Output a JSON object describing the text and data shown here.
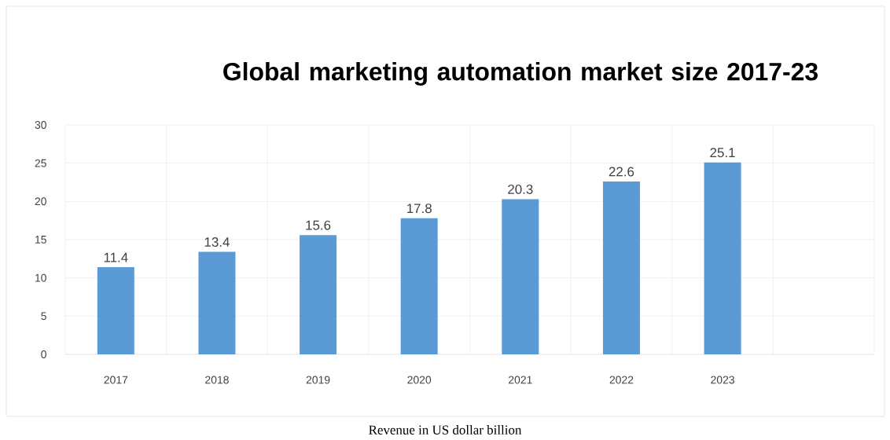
{
  "chart_data": {
    "type": "bar",
    "title": "Global marketing automation market size 2017-23",
    "categories": [
      "2017",
      "2018",
      "2019",
      "2020",
      "2021",
      "2022",
      "2023",
      null
    ],
    "values": [
      11.4,
      13.4,
      15.6,
      17.8,
      20.3,
      22.6,
      25.1,
      null
    ],
    "color": "#5b9bd5",
    "ylim": [
      0,
      30
    ],
    "yticks": [
      0,
      5,
      10,
      15,
      20,
      25,
      30
    ],
    "grid": true,
    "data_labels": true,
    "annotations": [
      "Revenue in US dollar billion"
    ]
  }
}
